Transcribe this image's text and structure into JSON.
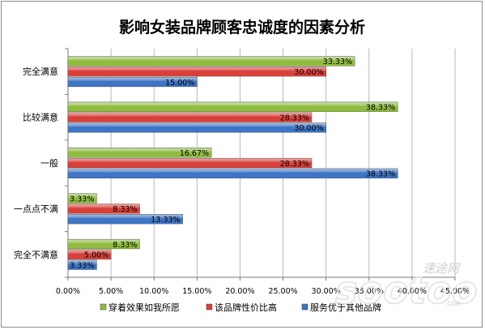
{
  "chart_data": {
    "type": "bar",
    "orientation": "horizontal",
    "title": "影响女装品牌顾客忠诚度的因素分析",
    "categories": [
      "完全满意",
      "比较满意",
      "一般",
      "一点点不满",
      "完全不满意"
    ],
    "series": [
      {
        "name": "穿着效果如我所愿",
        "color": "#8fbc3f",
        "values": [
          33.33,
          38.33,
          16.67,
          3.33,
          8.33
        ],
        "labels": [
          "33.33%",
          "38.33%",
          "16.67%",
          "3.33%",
          "8.33%"
        ]
      },
      {
        "name": "该品牌性价比高",
        "color": "#d9403a",
        "values": [
          30.0,
          28.33,
          28.33,
          8.33,
          5.0
        ],
        "labels": [
          "30.00%",
          "28.33%",
          "28.33%",
          "8.33%",
          "5.00%"
        ]
      },
      {
        "name": "服务优于其他品牌",
        "color": "#3d74c4",
        "values": [
          15.0,
          30.0,
          38.33,
          13.33,
          3.33
        ],
        "labels": [
          "15.00%",
          "30.00%",
          "38.33%",
          "13.33%",
          "3.33%"
        ]
      }
    ],
    "xlim": [
      0,
      45
    ],
    "xticks": [
      "0.00%",
      "5.00%",
      "10.00%",
      "15.00%",
      "20.00%",
      "25.00%",
      "30.00%",
      "35.00%",
      "40.00%",
      "45.00%"
    ],
    "grid": true,
    "legend_position": "bottom"
  },
  "watermark": {
    "site_cn": "速途网",
    "site_en": "sootoo",
    "site_domain": ".COM"
  }
}
